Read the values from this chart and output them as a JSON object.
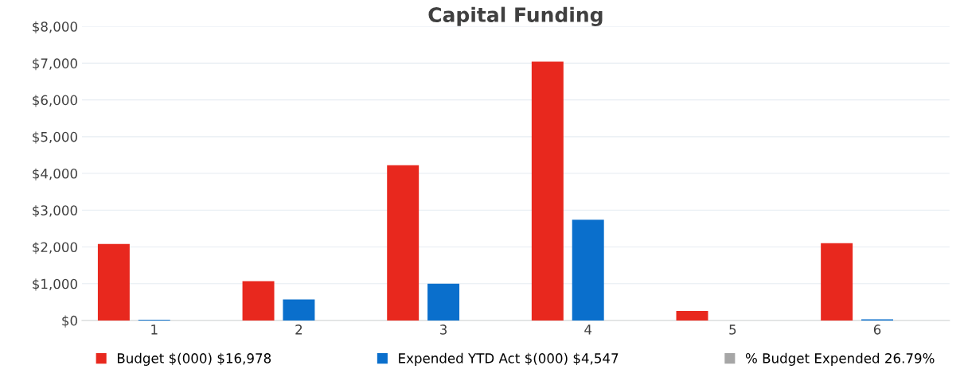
{
  "chart_data": {
    "type": "bar",
    "title": "Capital Funding",
    "categories": [
      "1",
      "2",
      "3",
      "4",
      "5",
      "6"
    ],
    "series": [
      {
        "name": "Budget $(000) $16,978",
        "color": "#e8281e",
        "values": [
          2080,
          1070,
          4220,
          7040,
          260,
          2100
        ]
      },
      {
        "name": "Expended YTD Act $(000) $4,547",
        "color": "#0a6fcc",
        "values": [
          20,
          570,
          1000,
          2740,
          0,
          30
        ]
      },
      {
        "name": "% Budget Expended 26.79%",
        "color": "#a6a6a6",
        "values": [
          null,
          null,
          null,
          null,
          null,
          null
        ]
      }
    ],
    "ylim": [
      0,
      8000
    ],
    "yticks": [
      {
        "value": 0,
        "label": "$0"
      },
      {
        "value": 1000,
        "label": "$1,000"
      },
      {
        "value": 2000,
        "label": "$2,000"
      },
      {
        "value": 3000,
        "label": "$3,000"
      },
      {
        "value": 4000,
        "label": "$4,000"
      },
      {
        "value": 5000,
        "label": "$5,000"
      },
      {
        "value": 6000,
        "label": "$6,000"
      },
      {
        "value": 7000,
        "label": "$7,000"
      },
      {
        "value": 8000,
        "label": "$8,000"
      }
    ],
    "grid": "y",
    "legend": "bottom"
  }
}
